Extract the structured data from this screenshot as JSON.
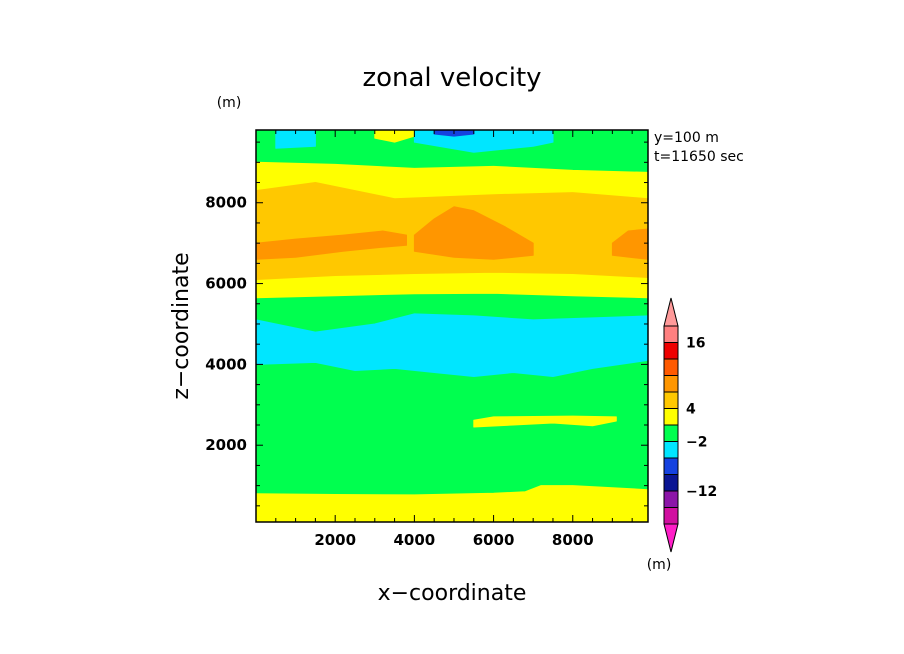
{
  "chart_data": {
    "type": "heatmap",
    "title": "zonal velocity",
    "xlabel": "x−coordinate",
    "ylabel": "z−coordinate",
    "x_unit": "(m)",
    "y_unit": "(m)",
    "info_lines": [
      "y=100  m",
      "t=11650  sec"
    ],
    "xlim": [
      0,
      9900
    ],
    "ylim": [
      100,
      9800
    ],
    "x_ticks": [
      {
        "value": 2000,
        "label": "2000"
      },
      {
        "value": 4000,
        "label": "4000"
      },
      {
        "value": 6000,
        "label": "6000"
      },
      {
        "value": 8000,
        "label": "8000"
      }
    ],
    "y_ticks": [
      {
        "value": 2000,
        "label": "2000"
      },
      {
        "value": 4000,
        "label": "4000"
      },
      {
        "value": 6000,
        "label": "6000"
      },
      {
        "value": 8000,
        "label": "8000"
      }
    ],
    "colorbar": {
      "colors": [
        "#d10fa0",
        "#8c15a8",
        "#0a1593",
        "#1542e0",
        "#00e6ff",
        "#00ff4f",
        "#ffff00",
        "#ffc800",
        "#ff9600",
        "#ff5a00",
        "#ee0000",
        "#ff8080"
      ],
      "under_color": "#ff1fc8",
      "over_color": "#ff9a9a",
      "labels": [
        {
          "after_box": 2,
          "label": "−12"
        },
        {
          "after_box": 5,
          "label": "−2"
        },
        {
          "after_box": 7,
          "label": "4"
        },
        {
          "after_box": 11,
          "label": "16"
        }
      ]
    },
    "levels": [
      {
        "name": "green",
        "color": "#00ff4f",
        "bands": [
          {
            "ymin": 100,
            "ymax": 9800
          }
        ]
      },
      {
        "name": "yellow",
        "color": "#ffff00",
        "bands": [
          {
            "ymin": 100,
            "ymax": 850,
            "bottom_edge": [],
            "top_edge": [
              [
                0,
                800
              ],
              [
                2000,
                780
              ],
              [
                4000,
                770
              ],
              [
                6000,
                810
              ],
              [
                6800,
                850
              ],
              [
                7200,
                1000
              ],
              [
                8000,
                1000
              ],
              [
                9900,
                900
              ]
            ]
          },
          {
            "ymin": 2400,
            "ymax": 2700,
            "bottom_edge": [
              [
                5500,
                2450
              ],
              [
                6500,
                2500
              ],
              [
                7500,
                2550
              ],
              [
                8500,
                2480
              ],
              [
                9100,
                2600
              ]
            ],
            "top_edge": [
              [
                9100,
                2700
              ],
              [
                8000,
                2720
              ],
              [
                6000,
                2700
              ],
              [
                5500,
                2620
              ]
            ]
          },
          {
            "ymin": 5700,
            "ymax": 9000,
            "bottom_edge": [
              [
                0,
                5650
              ],
              [
                2000,
                5700
              ],
              [
                4000,
                5750
              ],
              [
                6000,
                5760
              ],
              [
                8000,
                5700
              ],
              [
                9900,
                5650
              ]
            ],
            "top_edge": [
              [
                9900,
                8750
              ],
              [
                8000,
                8800
              ],
              [
                6000,
                8900
              ],
              [
                4000,
                8850
              ],
              [
                2000,
                8950
              ],
              [
                0,
                9000
              ]
            ]
          },
          {
            "ymin": 9400,
            "ymax": 9800,
            "bottom_edge": [
              [
                3000,
                9600
              ],
              [
                3500,
                9500
              ],
              [
                4000,
                9650
              ]
            ],
            "top_edge": [
              [
                4000,
                9800
              ],
              [
                3000,
                9800
              ]
            ]
          }
        ]
      },
      {
        "name": "orange",
        "color": "#ffc800",
        "bands": [
          {
            "ymin": 6100,
            "ymax": 8400,
            "bottom_edge": [
              [
                0,
                6100
              ],
              [
                2000,
                6200
              ],
              [
                4000,
                6250
              ],
              [
                6000,
                6280
              ],
              [
                8000,
                6250
              ],
              [
                9900,
                6150
              ]
            ],
            "top_edge": [
              [
                9900,
                8100
              ],
              [
                8000,
                8250
              ],
              [
                6000,
                8200
              ],
              [
                3500,
                8100
              ],
              [
                2500,
                8300
              ],
              [
                1500,
                8500
              ],
              [
                0,
                8300
              ]
            ]
          }
        ]
      },
      {
        "name": "dark-orange",
        "color": "#ff9600",
        "bands": [
          {
            "ymin": 6500,
            "ymax": 7600,
            "bottom_edge": [
              [
                0,
                6600
              ],
              [
                1000,
                6650
              ],
              [
                2200,
                6800
              ],
              [
                3200,
                6900
              ],
              [
                3800,
                6950
              ]
            ],
            "top_edge": [
              [
                3800,
                7200
              ],
              [
                3200,
                7300
              ],
              [
                2200,
                7200
              ],
              [
                1000,
                7100
              ],
              [
                0,
                7000
              ]
            ]
          },
          {
            "ymin": 6600,
            "ymax": 8000,
            "bottom_edge": [
              [
                4000,
                6800
              ],
              [
                5000,
                6650
              ],
              [
                6000,
                6600
              ],
              [
                7000,
                6700
              ]
            ],
            "top_edge": [
              [
                7000,
                7000
              ],
              [
                6300,
                7400
              ],
              [
                5500,
                7800
              ],
              [
                5000,
                7900
              ],
              [
                4500,
                7600
              ],
              [
                4000,
                7200
              ]
            ]
          },
          {
            "ymin": 6600,
            "ymax": 7400,
            "bottom_edge": [
              [
                9000,
                6700
              ],
              [
                9900,
                6600
              ]
            ],
            "top_edge": [
              [
                9900,
                7350
              ],
              [
                9400,
                7300
              ],
              [
                9000,
                7000
              ]
            ]
          }
        ]
      },
      {
        "name": "cyan",
        "color": "#00e6ff",
        "bands": [
          {
            "ymin": 3700,
            "ymax": 5300,
            "bottom_edge": [
              [
                0,
                4000
              ],
              [
                1500,
                4050
              ],
              [
                2500,
                3850
              ],
              [
                3500,
                3900
              ],
              [
                4500,
                3800
              ],
              [
                5500,
                3700
              ],
              [
                6500,
                3800
              ],
              [
                7500,
                3700
              ],
              [
                8500,
                3900
              ],
              [
                9900,
                4100
              ]
            ],
            "top_edge": [
              [
                9900,
                5200
              ],
              [
                8500,
                5150
              ],
              [
                7000,
                5100
              ],
              [
                5500,
                5200
              ],
              [
                4000,
                5250
              ],
              [
                3000,
                5000
              ],
              [
                1500,
                4800
              ],
              [
                0,
                5100
              ]
            ]
          },
          {
            "ymin": 9300,
            "ymax": 9800,
            "bottom_edge": [
              [
                500,
                9350
              ],
              [
                1500,
                9400
              ]
            ],
            "top_edge": [
              [
                1500,
                9800
              ],
              [
                500,
                9800
              ]
            ]
          },
          {
            "ymin": 9250,
            "ymax": 9800,
            "bottom_edge": [
              [
                4000,
                9500
              ],
              [
                5500,
                9250
              ],
              [
                7000,
                9400
              ],
              [
                7500,
                9500
              ]
            ],
            "top_edge": [
              [
                7500,
                9800
              ],
              [
                4000,
                9800
              ]
            ]
          }
        ]
      },
      {
        "name": "blue",
        "color": "#1542e0",
        "bands": [
          {
            "ymin": 9650,
            "ymax": 9800,
            "bottom_edge": [
              [
                4500,
                9700
              ],
              [
                5000,
                9650
              ],
              [
                5500,
                9700
              ]
            ],
            "top_edge": [
              [
                5500,
                9800
              ],
              [
                4500,
                9800
              ]
            ]
          }
        ]
      }
    ]
  }
}
